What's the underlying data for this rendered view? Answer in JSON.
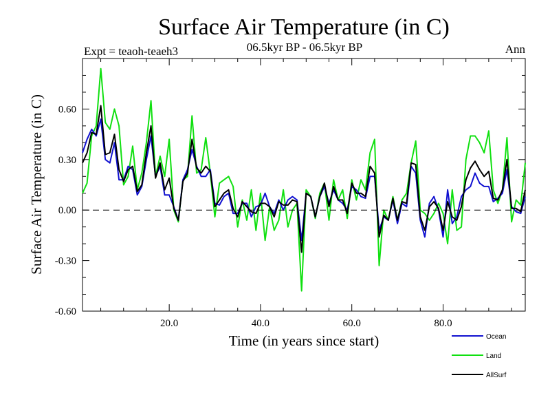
{
  "chart_data": {
    "type": "line",
    "title": "Surface Air Temperature (in C)",
    "subtitle": "06.5kyr BP - 06.5kyr BP",
    "left_label": "Expt = teaoh-teaeh3",
    "right_label": "Ann",
    "xlabel": "Time (in years since start)",
    "ylabel": "Surface Air Temperature (in C)",
    "xlim": [
      1,
      98
    ],
    "ylim": [
      -0.6,
      0.9
    ],
    "xticks": [
      20,
      40,
      60,
      80
    ],
    "xtick_labels": [
      "20.0",
      "40.0",
      "60.0",
      "80.0"
    ],
    "yticks": [
      -0.6,
      -0.3,
      0.0,
      0.3,
      0.6
    ],
    "ytick_labels": [
      "-0.60",
      "-0.30",
      "0.00",
      "0.30",
      "0.60"
    ],
    "zero_line": true,
    "x": [
      1,
      2,
      3,
      4,
      5,
      6,
      7,
      8,
      9,
      10,
      11,
      12,
      13,
      14,
      15,
      16,
      17,
      18,
      19,
      20,
      21,
      22,
      23,
      24,
      25,
      26,
      27,
      28,
      29,
      30,
      31,
      32,
      33,
      34,
      35,
      36,
      37,
      38,
      39,
      40,
      41,
      42,
      43,
      44,
      45,
      46,
      47,
      48,
      49,
      50,
      51,
      52,
      53,
      54,
      55,
      56,
      57,
      58,
      59,
      60,
      61,
      62,
      63,
      64,
      65,
      66,
      67,
      68,
      69,
      70,
      71,
      72,
      73,
      74,
      75,
      76,
      77,
      78,
      79,
      80,
      81,
      82,
      83,
      84,
      85,
      86,
      87,
      88,
      89,
      90,
      91,
      92,
      93,
      94,
      95,
      96,
      97,
      98
    ],
    "series": [
      {
        "name": "Ocean",
        "color": "#1010d0",
        "values": [
          0.34,
          0.42,
          0.48,
          0.44,
          0.54,
          0.3,
          0.28,
          0.4,
          0.18,
          0.18,
          0.26,
          0.24,
          0.09,
          0.14,
          0.3,
          0.44,
          0.2,
          0.26,
          0.09,
          0.09,
          0.02,
          -0.06,
          0.18,
          0.24,
          0.36,
          0.26,
          0.2,
          0.2,
          0.24,
          0.04,
          0.03,
          0.08,
          0.1,
          -0.02,
          -0.02,
          0.04,
          0.04,
          -0.04,
          0.02,
          0.03,
          0.1,
          0.02,
          -0.02,
          0.06,
          0.0,
          0.06,
          0.08,
          0.06,
          -0.18,
          0.1,
          0.08,
          -0.04,
          0.08,
          0.14,
          0.04,
          0.12,
          0.06,
          0.04,
          0.0,
          0.14,
          0.12,
          0.08,
          0.07,
          0.2,
          0.2,
          -0.12,
          -0.04,
          -0.06,
          0.06,
          -0.08,
          0.04,
          0.02,
          0.26,
          0.22,
          -0.06,
          -0.16,
          0.04,
          0.08,
          0.0,
          -0.16,
          0.12,
          -0.08,
          -0.04,
          0.08,
          0.12,
          0.14,
          0.22,
          0.16,
          0.14,
          0.14,
          0.05,
          0.07,
          0.1,
          0.24,
          0.02,
          -0.01,
          -0.02,
          0.08
        ]
      },
      {
        "name": "Land",
        "color": "#10e010",
        "values": [
          0.1,
          0.16,
          0.44,
          0.5,
          0.84,
          0.52,
          0.48,
          0.6,
          0.5,
          0.15,
          0.2,
          0.38,
          0.12,
          0.22,
          0.4,
          0.65,
          0.2,
          0.32,
          0.2,
          0.42,
          0.0,
          -0.07,
          0.18,
          0.2,
          0.56,
          0.22,
          0.24,
          0.43,
          0.22,
          -0.04,
          0.16,
          0.18,
          0.2,
          0.14,
          -0.1,
          0.06,
          -0.06,
          0.12,
          -0.12,
          0.1,
          -0.18,
          0.02,
          -0.12,
          -0.06,
          0.12,
          -0.1,
          0.0,
          0.04,
          -0.48,
          0.12,
          0.08,
          -0.05,
          0.1,
          0.16,
          -0.06,
          0.18,
          0.06,
          0.12,
          -0.05,
          0.18,
          0.06,
          0.18,
          0.12,
          0.34,
          0.42,
          -0.33,
          0.0,
          -0.06,
          0.08,
          -0.06,
          0.06,
          0.1,
          0.28,
          0.41,
          0.0,
          -0.02,
          -0.06,
          -0.02,
          0.04,
          -0.02,
          -0.2,
          0.12,
          -0.12,
          -0.1,
          0.3,
          0.44,
          0.44,
          0.4,
          0.34,
          0.47,
          0.12,
          0.04,
          0.12,
          0.43,
          -0.07,
          0.06,
          0.03,
          0.28
        ]
      },
      {
        "name": "AllSurf",
        "color": "#000000",
        "values": [
          0.28,
          0.34,
          0.46,
          0.45,
          0.62,
          0.33,
          0.34,
          0.45,
          0.24,
          0.17,
          0.24,
          0.26,
          0.11,
          0.15,
          0.34,
          0.5,
          0.19,
          0.28,
          0.12,
          0.19,
          0.01,
          -0.06,
          0.17,
          0.22,
          0.42,
          0.25,
          0.22,
          0.26,
          0.23,
          0.02,
          0.06,
          0.1,
          0.12,
          0.01,
          -0.04,
          0.05,
          0.02,
          -0.01,
          -0.02,
          0.04,
          0.04,
          0.02,
          -0.04,
          0.05,
          0.03,
          0.03,
          0.06,
          0.05,
          -0.25,
          0.1,
          0.08,
          -0.04,
          0.08,
          0.16,
          0.02,
          0.14,
          0.06,
          0.06,
          -0.02,
          0.16,
          0.1,
          0.1,
          0.08,
          0.26,
          0.22,
          -0.16,
          -0.03,
          -0.06,
          0.07,
          -0.06,
          0.05,
          0.04,
          0.28,
          0.27,
          -0.04,
          -0.12,
          0.02,
          0.05,
          0.01,
          -0.12,
          0.05,
          -0.04,
          -0.06,
          0.02,
          0.18,
          0.25,
          0.29,
          0.24,
          0.2,
          0.23,
          0.07,
          0.06,
          0.12,
          0.3,
          0.01,
          0.01,
          -0.01,
          0.12
        ]
      }
    ]
  }
}
